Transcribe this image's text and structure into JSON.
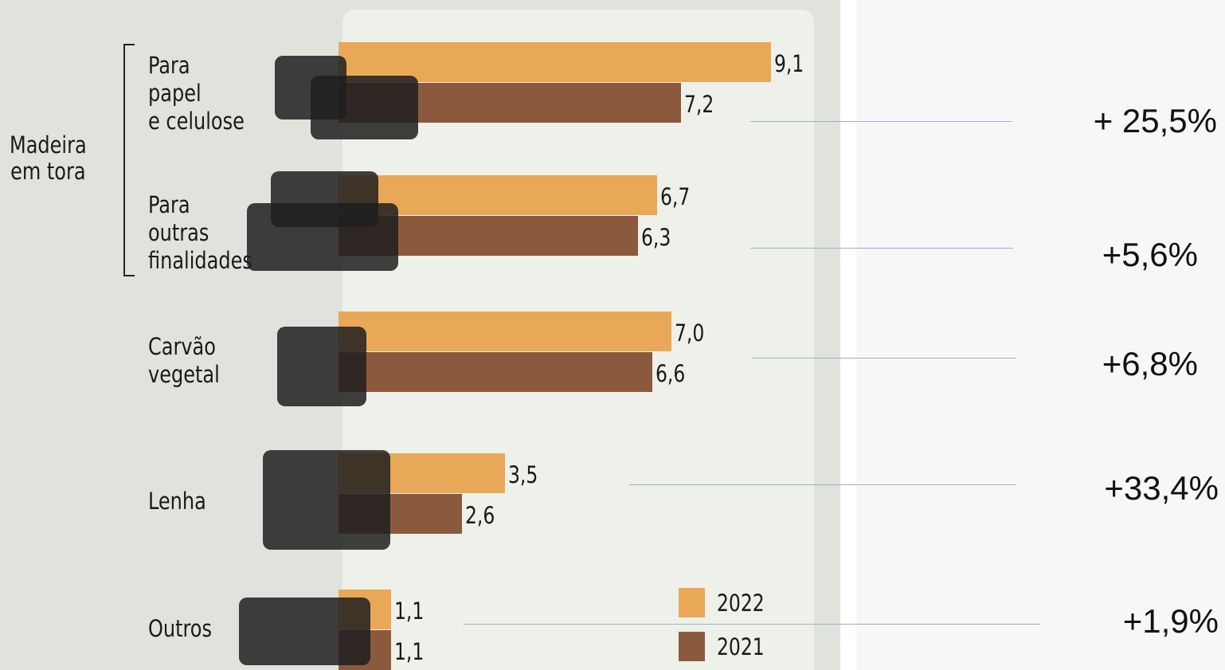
{
  "chart_data": {
    "type": "bar",
    "orientation": "horizontal",
    "group_label": "Madeira\nem tora",
    "categories": [
      "Para\npapel\ne celulose",
      "Para\noutras\nfinalidades",
      "Carvão\nvegetal",
      "Lenha",
      "Outros"
    ],
    "series": [
      {
        "name": "2022",
        "color": "#e8a857",
        "values": [
          9.1,
          6.7,
          7.0,
          3.5,
          1.1
        ],
        "value_labels": [
          "9,1",
          "6,7",
          "7,0",
          "3,5",
          "1,1"
        ]
      },
      {
        "name": "2021",
        "color": "#8b5a3e",
        "values": [
          7.2,
          6.3,
          6.6,
          2.6,
          1.1
        ],
        "value_labels": [
          "7,2",
          "6,3",
          "6,6",
          "2,6",
          "1,1"
        ]
      }
    ],
    "annotations": [
      "+ 25,5%",
      "+5,6%",
      "+6,8%",
      "+33,4%",
      "+1,9%"
    ]
  }
}
